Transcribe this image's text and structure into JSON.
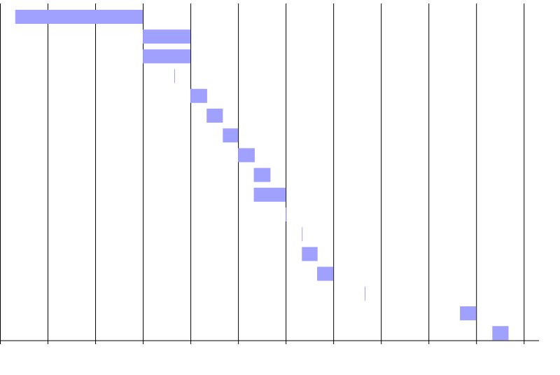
{
  "chart_data": {
    "type": "gantt",
    "start": [
      0.32,
      3,
      3,
      3.66,
      4,
      4.34,
      4.68,
      5,
      5.33,
      5.33,
      6,
      6.34,
      6.34,
      6.66,
      7.66,
      9.66,
      10.34
    ],
    "end": [
      3,
      4,
      4,
      3.66,
      4.35,
      4.68,
      5,
      5.35,
      5.68,
      6,
      6,
      6.34,
      6.67,
      7,
      7.66,
      10,
      10.68
    ],
    "color": "#a0a0ff",
    "xlim": [
      0,
      11.32
    ],
    "xticks": [
      0,
      1,
      2,
      3,
      4,
      5,
      6,
      7,
      8,
      9,
      10,
      11
    ],
    "grid": true
  }
}
